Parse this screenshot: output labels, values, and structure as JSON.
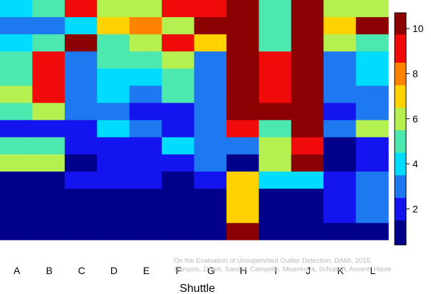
{
  "chart_data": {
    "type": "heatmap",
    "xlabel": "Shuttle",
    "columns": [
      "A",
      "B",
      "C",
      "D",
      "E",
      "F",
      "G",
      "H",
      "I",
      "J",
      "K",
      "L"
    ],
    "rows_top_to_bottom": 12,
    "values": [
      [
        4.3,
        5.0,
        9.5,
        6.0,
        6.0,
        9.5,
        9.5,
        10.5,
        5.0,
        10.5,
        6.0,
        6.0
      ],
      [
        3.0,
        3.0,
        4.3,
        7.0,
        8.0,
        6.0,
        10.5,
        10.5,
        5.0,
        10.5,
        7.0,
        10.5
      ],
      [
        4.3,
        5.0,
        10.5,
        5.0,
        6.0,
        9.5,
        7.0,
        10.5,
        5.0,
        10.5,
        6.0,
        5.0
      ],
      [
        5.0,
        9.5,
        3.0,
        5.0,
        5.0,
        6.0,
        3.0,
        10.5,
        9.5,
        10.5,
        3.0,
        4.3
      ],
      [
        5.0,
        9.5,
        3.0,
        4.3,
        4.3,
        5.0,
        3.0,
        10.5,
        9.5,
        10.5,
        3.0,
        4.3
      ],
      [
        6.0,
        9.5,
        3.0,
        4.3,
        3.0,
        5.0,
        3.0,
        10.5,
        9.5,
        10.5,
        3.0,
        3.0
      ],
      [
        5.0,
        6.0,
        3.0,
        3.0,
        2.0,
        2.0,
        3.0,
        10.5,
        10.5,
        10.5,
        2.0,
        3.0
      ],
      [
        2.0,
        2.0,
        2.0,
        4.3,
        3.0,
        2.0,
        3.0,
        9.5,
        5.0,
        10.5,
        3.0,
        6.0
      ],
      [
        5.0,
        5.0,
        2.0,
        2.0,
        2.0,
        4.3,
        3.0,
        3.0,
        6.0,
        9.5,
        1.0,
        2.0
      ],
      [
        6.0,
        6.0,
        1.0,
        2.0,
        2.0,
        2.0,
        3.0,
        1.0,
        6.0,
        10.5,
        1.0,
        2.0
      ],
      [
        1.0,
        1.0,
        2.0,
        2.0,
        2.0,
        1.0,
        2.0,
        7.0,
        4.3,
        4.3,
        2.0,
        3.0
      ],
      [
        1.0,
        1.0,
        1.0,
        1.0,
        1.0,
        1.0,
        1.0,
        7.0,
        1.0,
        1.0,
        2.0,
        3.0
      ]
    ],
    "extra_bottom_strip": {
      "rows": 2,
      "values": [
        [
          1.0,
          1.0,
          1.0,
          1.0,
          1.0,
          1.0,
          1.0,
          10.5,
          1.0,
          1.0,
          1.0,
          1.0
        ]
      ]
    },
    "colorbar": {
      "range": [
        0.4,
        10.7
      ],
      "ticks": [
        2,
        4,
        6,
        8,
        10
      ],
      "tick_labels": [
        "2",
        "4",
        "6",
        "8",
        "10"
      ],
      "levels": [
        {
          "from": 0.4,
          "to": 1.5,
          "color": "#00008b"
        },
        {
          "from": 1.5,
          "to": 2.5,
          "color": "#1414f0"
        },
        {
          "from": 2.5,
          "to": 3.5,
          "color": "#1e78f0"
        },
        {
          "from": 3.5,
          "to": 4.5,
          "color": "#00dcff"
        },
        {
          "from": 4.5,
          "to": 5.5,
          "color": "#4ce8b0"
        },
        {
          "from": 5.5,
          "to": 6.5,
          "color": "#b4f050"
        },
        {
          "from": 6.5,
          "to": 7.5,
          "color": "#ffd200"
        },
        {
          "from": 7.5,
          "to": 8.5,
          "color": "#ff8200"
        },
        {
          "from": 8.5,
          "to": 9.75,
          "color": "#f00a0a"
        },
        {
          "from": 9.75,
          "to": 10.7,
          "color": "#8b0000"
        }
      ]
    },
    "grid": false,
    "legend_placement": "right"
  },
  "watermark": {
    "line1": "On the Evaluation of Unsupervised Outlier Detection. DAMI, 2015.",
    "line2": "Campos, Zimek, Sander, Campello, Micenková, Schubert, Assent, Houle"
  }
}
